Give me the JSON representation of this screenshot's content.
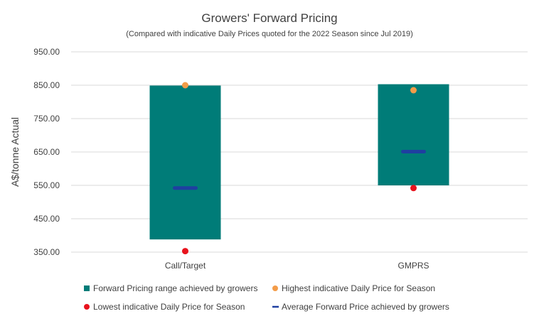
{
  "chart_data": {
    "type": "bar",
    "title": "Growers' Forward Pricing",
    "subtitle": "(Compared with indicative Daily Prices quoted for the 2022 Season since Jul 2019)",
    "ylabel": "A$/tonne Actual",
    "xlabel": "",
    "ylim": [
      350,
      950
    ],
    "yticks": [
      350,
      450,
      550,
      650,
      750,
      850,
      950
    ],
    "ytick_labels": [
      "350.00",
      "450.00",
      "550.00",
      "650.00",
      "750.00",
      "850.00",
      "950.00"
    ],
    "grid": true,
    "legend_position": "bottom",
    "categories": [
      "Call/Target",
      "GMPRS"
    ],
    "series": [
      {
        "name": "Forward Pricing range achieved by growers",
        "kind": "range",
        "color": "#007C78",
        "low": [
          388,
          550
        ],
        "high": [
          849,
          853
        ]
      },
      {
        "name": "Highest indicative Daily Price for Season",
        "kind": "point",
        "color": "#F39C49",
        "values": [
          850,
          835
        ]
      },
      {
        "name": "Lowest indicative Daily Price for Season",
        "kind": "point",
        "color": "#E8131D",
        "values": [
          353,
          542
        ]
      },
      {
        "name": "Average Forward Price achieved by growers",
        "kind": "dash",
        "color": "#1F3FA0",
        "values": [
          542,
          651
        ]
      }
    ]
  }
}
